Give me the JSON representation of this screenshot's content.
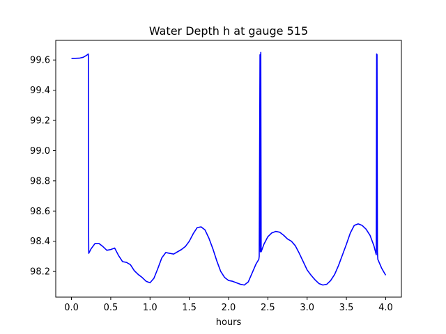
{
  "chart_data": {
    "type": "line",
    "title": "Water Depth h at gauge 515",
    "xlabel": "hours",
    "ylabel": "",
    "xlim": [
      -0.2,
      4.2
    ],
    "ylim": [
      98.03,
      99.73
    ],
    "xticks": [
      0.0,
      0.5,
      1.0,
      1.5,
      2.0,
      2.5,
      3.0,
      3.5,
      4.0
    ],
    "xtick_labels": [
      "0.0",
      "0.5",
      "1.0",
      "1.5",
      "2.0",
      "2.5",
      "3.0",
      "3.5",
      "4.0"
    ],
    "yticks": [
      98.2,
      98.4,
      98.6,
      98.8,
      99.0,
      99.2,
      99.4,
      99.6
    ],
    "ytick_labels": [
      "98.2",
      "98.4",
      "98.6",
      "98.8",
      "99.0",
      "99.2",
      "99.4",
      "99.6"
    ],
    "grid": false,
    "legend": "none",
    "series": [
      {
        "color": "#0000ff",
        "x": [
          0.0,
          0.1,
          0.15,
          0.19,
          0.215,
          0.218,
          0.22,
          0.25,
          0.3,
          0.35,
          0.4,
          0.45,
          0.5,
          0.55,
          0.6,
          0.65,
          0.7,
          0.75,
          0.8,
          0.85,
          0.9,
          0.95,
          1.0,
          1.05,
          1.1,
          1.15,
          1.2,
          1.25,
          1.3,
          1.35,
          1.4,
          1.45,
          1.5,
          1.55,
          1.6,
          1.65,
          1.7,
          1.75,
          1.8,
          1.85,
          1.9,
          1.95,
          2.0,
          2.05,
          2.1,
          2.15,
          2.2,
          2.25,
          2.3,
          2.35,
          2.385,
          2.39,
          2.4,
          2.405,
          2.41,
          2.415,
          2.45,
          2.5,
          2.55,
          2.6,
          2.65,
          2.7,
          2.75,
          2.8,
          2.85,
          2.9,
          2.95,
          3.0,
          3.05,
          3.1,
          3.15,
          3.2,
          3.25,
          3.3,
          3.35,
          3.4,
          3.45,
          3.5,
          3.55,
          3.6,
          3.65,
          3.7,
          3.75,
          3.8,
          3.85,
          3.88,
          3.885,
          3.89,
          3.895,
          3.9,
          3.95,
          4.0
        ],
        "y": [
          99.61,
          99.612,
          99.618,
          99.63,
          99.64,
          98.5,
          98.32,
          98.35,
          98.385,
          98.385,
          98.365,
          98.34,
          98.345,
          98.355,
          98.305,
          98.265,
          98.26,
          98.245,
          98.205,
          98.18,
          98.16,
          98.135,
          98.125,
          98.155,
          98.22,
          98.29,
          98.325,
          98.32,
          98.315,
          98.33,
          98.345,
          98.365,
          98.4,
          98.45,
          98.49,
          98.495,
          98.475,
          98.42,
          98.35,
          98.27,
          98.2,
          98.16,
          98.14,
          98.135,
          98.125,
          98.115,
          98.11,
          98.13,
          98.19,
          98.25,
          98.28,
          98.3,
          99.635,
          98.33,
          99.65,
          98.33,
          98.38,
          98.43,
          98.455,
          98.465,
          98.46,
          98.44,
          98.415,
          98.4,
          98.37,
          98.32,
          98.265,
          98.21,
          98.175,
          98.145,
          98.12,
          98.11,
          98.115,
          98.14,
          98.18,
          98.24,
          98.31,
          98.38,
          98.455,
          98.505,
          98.515,
          98.505,
          98.48,
          98.44,
          98.37,
          98.31,
          99.64,
          99.635,
          98.33,
          98.28,
          98.22,
          98.175
        ]
      }
    ]
  }
}
